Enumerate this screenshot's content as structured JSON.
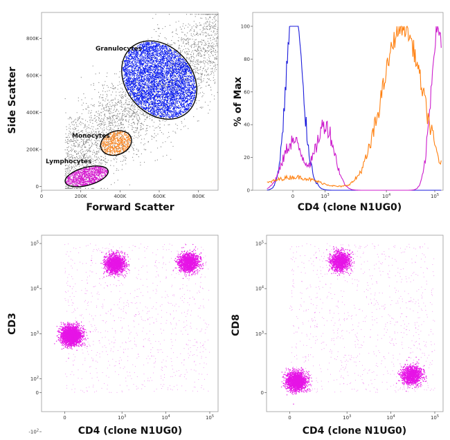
{
  "chart_data": [
    {
      "type": "scatter",
      "title": "",
      "xlabel": "Forward Scatter",
      "ylabel": "Side Scatter",
      "x_ticks": [
        "0",
        "200K",
        "400K",
        "600K",
        "800K"
      ],
      "y_ticks": [
        "0",
        "200K",
        "400K",
        "600K",
        "800K"
      ],
      "xlim": [
        0,
        900000
      ],
      "ylim": [
        -20000,
        940000
      ],
      "gates": [
        {
          "name": "Granulocytes",
          "color": "#0a1cf0",
          "center": [
            600000,
            575000
          ],
          "count": 5200
        },
        {
          "name": "Monocytes",
          "color": "#f98a2a",
          "center": [
            380000,
            235000
          ],
          "count": 700
        },
        {
          "name": "Lymphocytes",
          "color": "#d51ad0",
          "center": [
            230000,
            55000
          ],
          "count": 1100
        }
      ],
      "background_color": "#808080"
    },
    {
      "type": "line",
      "title": "",
      "xlabel": "CD4 (clone N1UG0)",
      "ylabel": "% of Max",
      "x_ticks": [
        "0",
        "10^3",
        "10^4",
        "10^5"
      ],
      "y_ticks": [
        "0",
        "20",
        "40",
        "60",
        "80",
        "100"
      ],
      "ylim": [
        0,
        100
      ],
      "series": [
        {
          "color": "#1a1adb",
          "peaks": [
            [
              0,
              100,
              0.07
            ],
            [
              0.25,
              28,
              0.08
            ]
          ]
        },
        {
          "color": "#cc1ccc",
          "peaks": [
            [
              0,
              30,
              0.1
            ],
            [
              1.0,
              40,
              0.09
            ],
            [
              4.5,
              100,
              0.07
            ]
          ]
        },
        {
          "color": "#ff7f0e",
          "peaks": [
            [
              0.05,
              8,
              0.25
            ],
            [
              3.4,
              100,
              0.2
            ]
          ]
        }
      ]
    },
    {
      "type": "scatter",
      "title": "",
      "xlabel": "CD4 (clone N1UG0)",
      "ylabel": "CD3",
      "x_ticks": [
        "0",
        "10^3",
        "10^4",
        "10^5"
      ],
      "y_ticks": [
        "-10^2",
        "0",
        "10^2",
        "10^3",
        "10^4",
        "10^5"
      ],
      "color": "#e614e6",
      "clusters": [
        {
          "x": 700,
          "y": 35000,
          "count": 1400
        },
        {
          "x": 33000,
          "y": 38000,
          "count": 1400
        },
        {
          "x": 50,
          "y": 900,
          "count": 2400
        }
      ]
    },
    {
      "type": "scatter",
      "title": "",
      "xlabel": "CD4 (clone N1UG0)",
      "ylabel": "CD8",
      "x_ticks": [
        "0",
        "10^3",
        "10^4",
        "10^5"
      ],
      "y_ticks": [
        "0",
        "10^3",
        "10^4",
        "10^5"
      ],
      "color": "#e614e6",
      "clusters": [
        {
          "x": 700,
          "y": 40000,
          "count": 1200
        },
        {
          "x": 30000,
          "y": 120,
          "count": 1200
        },
        {
          "x": 50,
          "y": 80,
          "count": 1800
        }
      ]
    }
  ]
}
